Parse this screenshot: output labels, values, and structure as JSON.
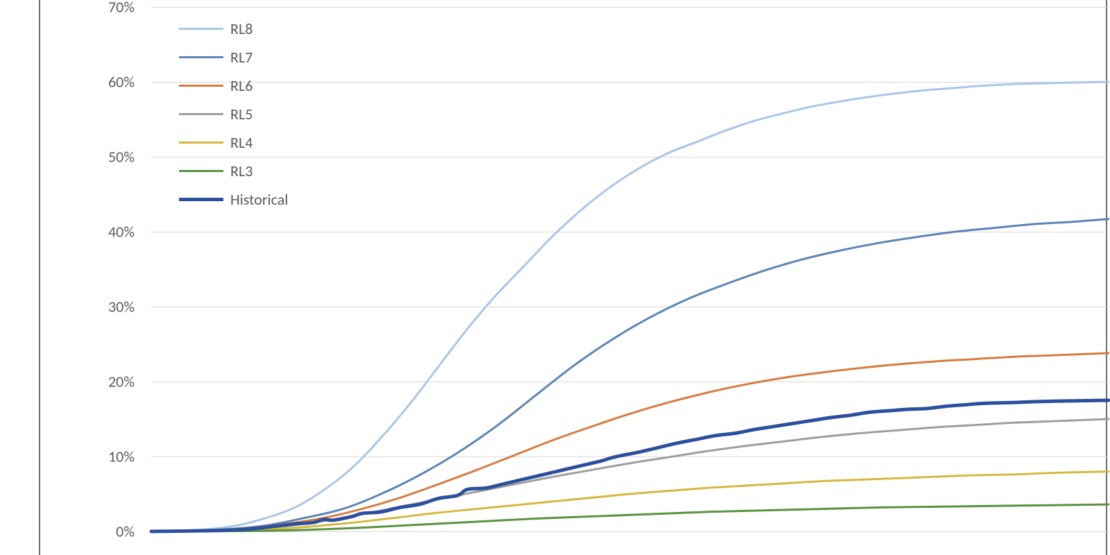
{
  "chart": {
    "type": "line",
    "background_color": "#ffffff",
    "grid_color": "#d9d9d9",
    "border_color": "#6f6f6f",
    "axis_label_color": "#595959",
    "tick_fontsize": 22,
    "legend_fontsize": 22,
    "y": {
      "min": 0,
      "max": 70,
      "step": 10,
      "suffix": "%"
    },
    "x": {
      "min": 0,
      "max": 100
    },
    "legend": {
      "position": "top-left"
    },
    "series": [
      {
        "name": "RL8",
        "color": "#a9c5e8",
        "width": 3,
        "data": [
          [
            0,
            0
          ],
          [
            3,
            0.1
          ],
          [
            6,
            0.3
          ],
          [
            9,
            0.8
          ],
          [
            12,
            1.8
          ],
          [
            15,
            3.2
          ],
          [
            18,
            5.5
          ],
          [
            21,
            8.5
          ],
          [
            24,
            12.5
          ],
          [
            27,
            17.0
          ],
          [
            30,
            22.0
          ],
          [
            33,
            27.0
          ],
          [
            36,
            31.5
          ],
          [
            39,
            35.5
          ],
          [
            42,
            39.5
          ],
          [
            45,
            43.0
          ],
          [
            48,
            46.0
          ],
          [
            51,
            48.5
          ],
          [
            54,
            50.5
          ],
          [
            57,
            52.0
          ],
          [
            60,
            53.5
          ],
          [
            63,
            54.8
          ],
          [
            66,
            55.8
          ],
          [
            69,
            56.7
          ],
          [
            72,
            57.4
          ],
          [
            75,
            58.0
          ],
          [
            78,
            58.5
          ],
          [
            81,
            58.9
          ],
          [
            84,
            59.2
          ],
          [
            87,
            59.5
          ],
          [
            90,
            59.7
          ],
          [
            93,
            59.8
          ],
          [
            96,
            59.9
          ],
          [
            100,
            60.0
          ]
        ]
      },
      {
        "name": "RL7",
        "color": "#5b85b6",
        "width": 3,
        "data": [
          [
            0,
            0
          ],
          [
            4,
            0.1
          ],
          [
            8,
            0.3
          ],
          [
            12,
            0.8
          ],
          [
            16,
            1.8
          ],
          [
            20,
            3.0
          ],
          [
            24,
            5.0
          ],
          [
            28,
            7.5
          ],
          [
            32,
            10.5
          ],
          [
            36,
            14.0
          ],
          [
            40,
            18.0
          ],
          [
            44,
            22.0
          ],
          [
            48,
            25.5
          ],
          [
            52,
            28.5
          ],
          [
            56,
            31.0
          ],
          [
            60,
            33.0
          ],
          [
            64,
            34.8
          ],
          [
            68,
            36.3
          ],
          [
            72,
            37.5
          ],
          [
            76,
            38.5
          ],
          [
            80,
            39.3
          ],
          [
            84,
            40.0
          ],
          [
            88,
            40.5
          ],
          [
            92,
            41.0
          ],
          [
            96,
            41.3
          ],
          [
            100,
            41.7
          ]
        ]
      },
      {
        "name": "RL6",
        "color": "#d97b3e",
        "width": 3,
        "data": [
          [
            0,
            0
          ],
          [
            5,
            0.1
          ],
          [
            10,
            0.4
          ],
          [
            14,
            1.0
          ],
          [
            18,
            1.8
          ],
          [
            22,
            3.0
          ],
          [
            26,
            4.5
          ],
          [
            30,
            6.3
          ],
          [
            34,
            8.2
          ],
          [
            38,
            10.2
          ],
          [
            42,
            12.2
          ],
          [
            46,
            14.0
          ],
          [
            50,
            15.7
          ],
          [
            54,
            17.2
          ],
          [
            58,
            18.5
          ],
          [
            62,
            19.6
          ],
          [
            66,
            20.5
          ],
          [
            70,
            21.2
          ],
          [
            74,
            21.8
          ],
          [
            78,
            22.3
          ],
          [
            82,
            22.7
          ],
          [
            86,
            23.0
          ],
          [
            90,
            23.3
          ],
          [
            94,
            23.5
          ],
          [
            100,
            23.8
          ]
        ]
      },
      {
        "name": "RL5",
        "color": "#9e9e9e",
        "width": 3,
        "data": [
          [
            0,
            0
          ],
          [
            6,
            0.1
          ],
          [
            10,
            0.3
          ],
          [
            14,
            0.7
          ],
          [
            18,
            1.4
          ],
          [
            22,
            2.3
          ],
          [
            26,
            3.3
          ],
          [
            30,
            4.3
          ],
          [
            34,
            5.3
          ],
          [
            38,
            6.3
          ],
          [
            42,
            7.3
          ],
          [
            46,
            8.2
          ],
          [
            50,
            9.1
          ],
          [
            54,
            9.9
          ],
          [
            58,
            10.7
          ],
          [
            62,
            11.4
          ],
          [
            66,
            12.0
          ],
          [
            70,
            12.6
          ],
          [
            74,
            13.1
          ],
          [
            78,
            13.5
          ],
          [
            82,
            13.9
          ],
          [
            86,
            14.2
          ],
          [
            90,
            14.5
          ],
          [
            94,
            14.7
          ],
          [
            100,
            15.0
          ]
        ]
      },
      {
        "name": "RL4",
        "color": "#d5b93e",
        "width": 3,
        "data": [
          [
            0,
            0
          ],
          [
            8,
            0.1
          ],
          [
            14,
            0.4
          ],
          [
            18,
            0.8
          ],
          [
            22,
            1.3
          ],
          [
            26,
            1.9
          ],
          [
            30,
            2.5
          ],
          [
            34,
            3.0
          ],
          [
            38,
            3.5
          ],
          [
            42,
            4.0
          ],
          [
            46,
            4.5
          ],
          [
            50,
            5.0
          ],
          [
            54,
            5.4
          ],
          [
            58,
            5.8
          ],
          [
            62,
            6.1
          ],
          [
            66,
            6.4
          ],
          [
            70,
            6.7
          ],
          [
            74,
            6.9
          ],
          [
            78,
            7.1
          ],
          [
            82,
            7.3
          ],
          [
            86,
            7.5
          ],
          [
            90,
            7.6
          ],
          [
            94,
            7.8
          ],
          [
            100,
            8.0
          ]
        ]
      },
      {
        "name": "RL3",
        "color": "#5a9340",
        "width": 3,
        "data": [
          [
            0,
            0
          ],
          [
            10,
            0.05
          ],
          [
            16,
            0.2
          ],
          [
            22,
            0.5
          ],
          [
            28,
            0.9
          ],
          [
            34,
            1.3
          ],
          [
            40,
            1.7
          ],
          [
            46,
            2.0
          ],
          [
            52,
            2.3
          ],
          [
            58,
            2.6
          ],
          [
            64,
            2.8
          ],
          [
            70,
            3.0
          ],
          [
            76,
            3.2
          ],
          [
            82,
            3.3
          ],
          [
            88,
            3.4
          ],
          [
            94,
            3.5
          ],
          [
            100,
            3.6
          ]
        ]
      },
      {
        "name": "Historical",
        "color": "#2c4f9e",
        "width": 5,
        "data": [
          [
            0,
            0
          ],
          [
            6,
            0.1
          ],
          [
            10,
            0.3
          ],
          [
            13,
            0.7
          ],
          [
            15,
            1.0
          ],
          [
            17,
            1.2
          ],
          [
            18,
            1.6
          ],
          [
            19,
            1.5
          ],
          [
            21,
            2.0
          ],
          [
            22,
            2.4
          ],
          [
            24,
            2.6
          ],
          [
            26,
            3.2
          ],
          [
            28,
            3.6
          ],
          [
            30,
            4.4
          ],
          [
            32,
            4.8
          ],
          [
            33,
            5.6
          ],
          [
            35,
            5.8
          ],
          [
            37,
            6.4
          ],
          [
            39,
            7.0
          ],
          [
            41,
            7.6
          ],
          [
            43,
            8.2
          ],
          [
            45,
            8.8
          ],
          [
            47,
            9.4
          ],
          [
            48,
            9.8
          ],
          [
            49,
            10.1
          ],
          [
            51,
            10.6
          ],
          [
            53,
            11.2
          ],
          [
            55,
            11.8
          ],
          [
            57,
            12.3
          ],
          [
            59,
            12.8
          ],
          [
            61,
            13.1
          ],
          [
            63,
            13.6
          ],
          [
            65,
            14.0
          ],
          [
            67,
            14.4
          ],
          [
            69,
            14.8
          ],
          [
            71,
            15.2
          ],
          [
            73,
            15.5
          ],
          [
            75,
            15.9
          ],
          [
            77,
            16.1
          ],
          [
            79,
            16.3
          ],
          [
            81,
            16.4
          ],
          [
            83,
            16.7
          ],
          [
            85,
            16.9
          ],
          [
            87,
            17.1
          ],
          [
            90,
            17.2
          ],
          [
            92,
            17.3
          ],
          [
            95,
            17.4
          ],
          [
            100,
            17.5
          ]
        ]
      }
    ]
  }
}
